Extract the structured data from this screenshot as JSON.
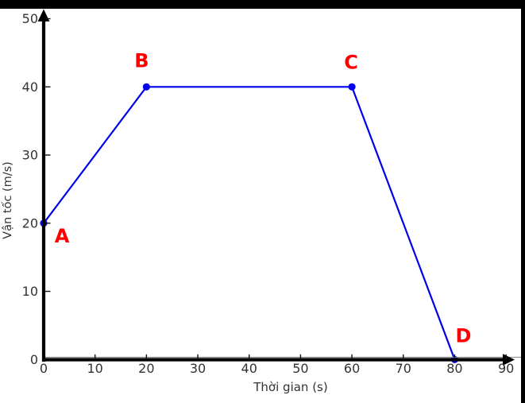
{
  "window": {
    "background": "#ffffff",
    "letterbox_color": "#000000"
  },
  "chart_data": {
    "type": "line",
    "title": "",
    "xlabel": "Thời gian (s)",
    "ylabel": "Vận tốc (m/s)",
    "x_ticks": [
      0,
      10,
      20,
      30,
      40,
      50,
      60,
      70,
      80,
      90
    ],
    "y_ticks": [
      0,
      10,
      20,
      30,
      40,
      50
    ],
    "xlim": [
      0,
      92
    ],
    "ylim": [
      0,
      52
    ],
    "grid": false,
    "legend": null,
    "axes_arrows": true,
    "series": [
      {
        "name": "velocity-profile",
        "color": "#0000ee",
        "marker": "dot",
        "x": [
          0,
          20,
          60,
          80
        ],
        "y": [
          20,
          40,
          40,
          0
        ]
      }
    ],
    "points": [
      {
        "label": "A",
        "x": 0,
        "y": 20
      },
      {
        "label": "B",
        "x": 20,
        "y": 40
      },
      {
        "label": "C",
        "x": 60,
        "y": 40
      },
      {
        "label": "D",
        "x": 80,
        "y": 0
      }
    ],
    "point_label_color": "#ff0000",
    "axis_color": "#000000",
    "spine_color": "#909090",
    "tick_label_color": "#333333"
  }
}
